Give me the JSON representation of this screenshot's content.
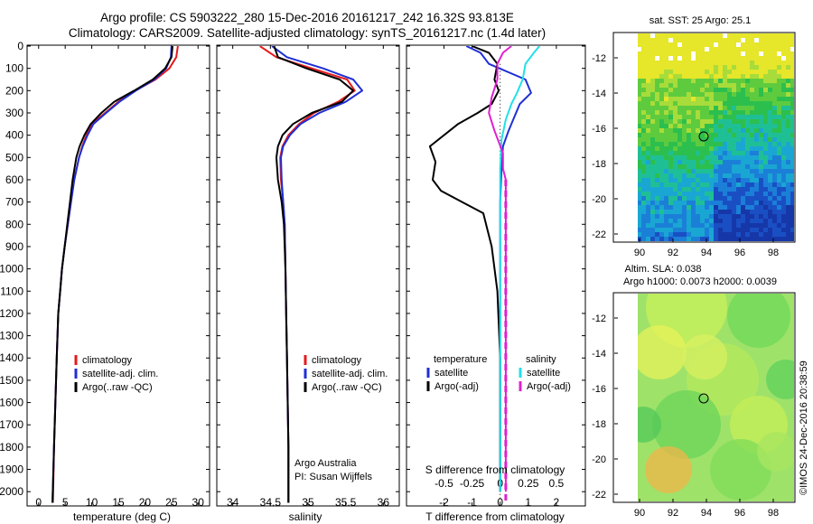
{
  "header": {
    "line1": "Argo profile: CS 5903222_280 15-Dec-2016 20161217_242 16.32S 93.813E",
    "line2": "Climatology: CARS2009. Satellite-adjusted climatology: synTS_20161217.nc (1.4d later)"
  },
  "colors": {
    "climatology": "#e41a1c",
    "satellite": "#1f2fd6",
    "argo": "#000000",
    "sat_salinity": "#22e0e8",
    "argo_adj_salinity": "#e020d0"
  },
  "depth_axis": {
    "ticks": [
      "0",
      "100",
      "200",
      "300",
      "400",
      "500",
      "600",
      "700",
      "800",
      "900",
      "1000",
      "1100",
      "1200",
      "1300",
      "1400",
      "1500",
      "1600",
      "1700",
      "1800",
      "1900",
      "2000"
    ],
    "ylim": [
      0,
      2060
    ],
    "inverted": true
  },
  "panels": {
    "temperature": {
      "xlabel": "temperature (deg C)",
      "xticks": [
        "0",
        "5",
        "10",
        "15",
        "20",
        "25",
        "30"
      ],
      "xlim": [
        -2,
        32
      ],
      "legend": [
        "climatology",
        "satellite-adj. clim.",
        "Argo(..raw -QC)"
      ]
    },
    "salinity": {
      "xlabel": "salinity",
      "xticks": [
        "34",
        "34.5",
        "35",
        "35.5",
        "36"
      ],
      "xlim": [
        33.8,
        36.2
      ],
      "legend": [
        "climatology",
        "satellite-adj. clim.",
        "Argo(..raw -QC)"
      ],
      "credit1": "Argo Australia",
      "credit2": "PI: Susan Wijffels"
    },
    "difference": {
      "xlabel_bottom": "T difference from climatology",
      "xlabel_top": "S difference from climatology",
      "xticks_T": [
        "-2",
        "-1",
        "0",
        "1",
        "2"
      ],
      "xticks_S": [
        "-0.5",
        "-0.25",
        "0",
        "0.25",
        "0.5"
      ],
      "xlim_T": [
        -3.3,
        3.0
      ],
      "legend_temp_title": "temperature",
      "legend_sal_title": "salinity",
      "legend_items": [
        "satellite",
        "Argo(-adj)",
        "satellite",
        "Argo(-adj)"
      ]
    },
    "sst_map": {
      "title": "sat. SST: 25  Argo: 25.1",
      "yticks": [
        "-12",
        "-14",
        "-16",
        "-18",
        "-20",
        "-22"
      ],
      "xticks": [
        "90",
        "92",
        "94",
        "96",
        "98"
      ],
      "marker": {
        "lon": 93.8,
        "lat": -16.32
      }
    },
    "sla_map": {
      "title1": "Altim. SLA: 0.038",
      "title2": "Argo h1000: 0.0073  h2000: 0.0039",
      "yticks": [
        "-12",
        "-14",
        "-16",
        "-18",
        "-20",
        "-22"
      ],
      "xticks": [
        "90",
        "92",
        "94",
        "96",
        "98"
      ],
      "marker": {
        "lon": 93.8,
        "lat": -16.32
      }
    }
  },
  "stamp": "©IMOS 24-Dec-2016 20:38:59",
  "chart_data": [
    {
      "type": "line",
      "title": "",
      "xlabel": "temperature (deg C)",
      "ylabel": "",
      "xlim": [
        -2,
        32
      ],
      "ylim": [
        0,
        2060
      ],
      "series": [
        {
          "name": "climatology",
          "x": [
            26.2,
            25.9,
            24.6,
            22,
            18.2,
            15,
            12.5,
            10,
            9,
            8.2,
            7.6,
            6.7,
            6.1,
            5.5,
            4.9,
            4.4,
            4.05,
            3.7,
            3.4,
            3.15,
            2.9,
            2.7
          ],
          "y": [
            0,
            50,
            100,
            150,
            200,
            250,
            300,
            350,
            400,
            450,
            500,
            600,
            700,
            800,
            900,
            1000,
            1100,
            1200,
            1400,
            1600,
            1800,
            2050
          ]
        },
        {
          "name": "satellite-adj. clim.",
          "x": [
            25,
            24.9,
            24,
            21.8,
            18.3,
            15.2,
            12.7,
            10.3,
            9.2,
            8.3,
            7.6,
            6.7,
            6.1,
            5.5,
            4.9,
            4.4,
            4.05,
            3.7,
            3.4,
            3.15,
            2.9,
            2.6
          ],
          "y": [
            0,
            50,
            100,
            150,
            200,
            250,
            300,
            350,
            400,
            450,
            500,
            600,
            700,
            800,
            900,
            1000,
            1100,
            1200,
            1400,
            1600,
            1800,
            2050
          ]
        },
        {
          "name": "Argo(..raw -QC)",
          "x": [
            25.2,
            25,
            23.8,
            21.5,
            18,
            14.2,
            11.8,
            9.8,
            8.6,
            7.7,
            7.1,
            6.4,
            5.9,
            5.4,
            4.9,
            4.4,
            4.05,
            3.7,
            3.4,
            3.15,
            2.9,
            2.6
          ],
          "y": [
            0,
            50,
            100,
            150,
            200,
            250,
            300,
            350,
            400,
            450,
            500,
            600,
            700,
            800,
            900,
            1000,
            1100,
            1200,
            1400,
            1600,
            1800,
            2050
          ]
        }
      ]
    },
    {
      "type": "line",
      "title": "",
      "xlabel": "salinity",
      "ylabel": "",
      "xlim": [
        33.8,
        36.2
      ],
      "ylim": [
        0,
        2060
      ],
      "series": [
        {
          "name": "climatology",
          "x": [
            34.36,
            34.58,
            35.05,
            35.52,
            35.62,
            35.4,
            35.08,
            34.88,
            34.74,
            34.66,
            34.63,
            34.64,
            34.67,
            34.69,
            34.7,
            34.71,
            34.72,
            34.73,
            34.74,
            34.74
          ],
          "y": [
            0,
            50,
            100,
            150,
            200,
            250,
            300,
            350,
            400,
            450,
            500,
            600,
            700,
            800,
            1000,
            1200,
            1400,
            1600,
            1800,
            2050
          ]
        },
        {
          "name": "satellite-adj. clim.",
          "x": [
            34.52,
            34.72,
            35.2,
            35.6,
            35.72,
            35.5,
            35.15,
            34.9,
            34.76,
            34.67,
            34.64,
            34.65,
            34.67,
            34.69,
            34.7,
            34.71,
            34.72,
            34.73,
            34.74,
            34.74
          ],
          "y": [
            0,
            50,
            100,
            150,
            200,
            250,
            300,
            350,
            400,
            450,
            500,
            600,
            700,
            800,
            1000,
            1200,
            1400,
            1600,
            1800,
            2050
          ]
        },
        {
          "name": "Argo(..raw -QC)",
          "x": [
            34.55,
            34.6,
            34.98,
            35.42,
            35.6,
            35.45,
            35.05,
            34.8,
            34.66,
            34.6,
            34.58,
            34.6,
            34.65,
            34.68,
            34.7,
            34.71,
            34.72,
            34.73,
            34.74,
            34.74
          ],
          "y": [
            0,
            50,
            100,
            150,
            200,
            250,
            300,
            350,
            400,
            450,
            500,
            600,
            700,
            800,
            1000,
            1200,
            1400,
            1600,
            1800,
            2050
          ]
        }
      ]
    },
    {
      "type": "line",
      "title": "",
      "xlabel": "T difference from climatology",
      "ylabel": "",
      "xlim": [
        -3.3,
        3.0
      ],
      "ylim": [
        0,
        2060
      ],
      "series": [
        {
          "name": "satellite",
          "x": [
            -1.2,
            -0.7,
            -0.4,
            0.9,
            1.1,
            0.7,
            0.5,
            0.3,
            0.1,
            0.05,
            0,
            0,
            0,
            0,
            0,
            0
          ],
          "y": [
            0,
            30,
            80,
            150,
            210,
            260,
            320,
            380,
            450,
            550,
            700,
            900,
            1100,
            1400,
            1700,
            2000
          ]
        },
        {
          "name": "Argo(-adj)",
          "x": [
            -1.0,
            -0.4,
            -0.1,
            -0.2,
            -0.05,
            -0.3,
            -0.8,
            -1.5,
            -2.5,
            -2.3,
            -2.4,
            -2.1,
            -0.6,
            -0.3,
            -0.1,
            0,
            0
          ],
          "y": [
            0,
            30,
            80,
            150,
            200,
            260,
            300,
            350,
            450,
            520,
            600,
            650,
            750,
            900,
            1100,
            1400,
            2000
          ]
        },
        {
          "name": "satellite",
          "x": [
            1.4,
            1.2,
            0.9,
            0.8,
            0.6,
            0.4,
            0.2,
            0.05,
            0,
            0,
            0,
            0,
            0,
            0
          ],
          "y": [
            0,
            30,
            80,
            150,
            210,
            260,
            330,
            420,
            550,
            700,
            900,
            1200,
            1600,
            2000
          ]
        },
        {
          "name": "Argo(-adj)",
          "x": [
            0.4,
            0.1,
            -0.1,
            -0.1,
            -0.3,
            -0.4,
            -0.2,
            0.1,
            0.1,
            0.2,
            0.2,
            0.2,
            0.2,
            0.2
          ],
          "y": [
            0,
            30,
            80,
            150,
            230,
            300,
            380,
            480,
            550,
            600,
            800,
            1100,
            1500,
            2000
          ]
        }
      ]
    }
  ]
}
